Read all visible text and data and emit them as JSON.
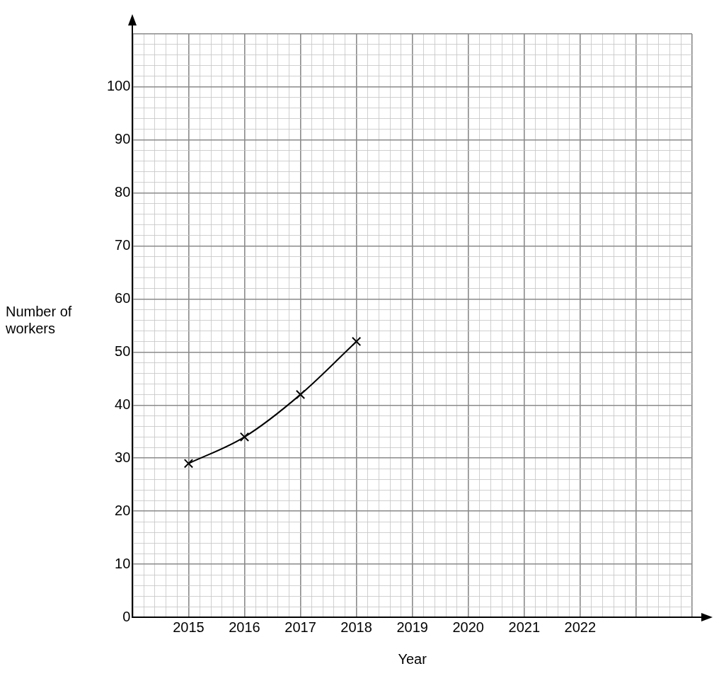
{
  "chart_data": {
    "type": "line",
    "xlabel": "Year",
    "ylabel": "Number of workers",
    "x": [
      2015,
      2016,
      2017,
      2018
    ],
    "series": [
      {
        "color": "#000000",
        "values": [
          29,
          34,
          42,
          52
        ]
      }
    ],
    "marker": "cross",
    "line_style": "solid",
    "grid": true,
    "legend": false,
    "xlim": [
      2014,
      2024
    ],
    "ylim": [
      0,
      110
    ],
    "xticks": [
      {
        "value": 2014,
        "label": null
      },
      {
        "value": 2014.2,
        "label": null
      },
      {
        "value": 2014.4,
        "label": null
      },
      {
        "value": 2014.6,
        "label": null
      },
      {
        "value": 2014.8,
        "label": null
      },
      2015,
      {
        "value": 2015.2,
        "label": null
      },
      {
        "value": 2015.4,
        "label": null
      },
      {
        "value": 2015.6,
        "label": null
      },
      {
        "value": 2015.8,
        "label": null
      },
      2016,
      {
        "value": 2016.2,
        "label": null
      },
      {
        "value": 2016.4,
        "label": null
      },
      {
        "value": 2016.6,
        "label": null
      },
      {
        "value": 2016.8,
        "label": null
      },
      2017,
      {
        "value": 2017.2,
        "label": null
      },
      {
        "value": 2017.4,
        "label": null
      },
      {
        "value": 2017.6,
        "label": null
      },
      {
        "value": 2017.8,
        "label": null
      },
      2018,
      {
        "value": 2018.2,
        "label": null
      },
      {
        "value": 2018.4,
        "label": null
      },
      {
        "value": 2018.6,
        "label": null
      },
      {
        "value": 2018.8,
        "label": null
      },
      2019,
      {
        "value": 2019.2,
        "label": null
      },
      {
        "value": 2019.4,
        "label": null
      },
      {
        "value": 2019.6,
        "label": null
      },
      {
        "value": 2019.8,
        "label": null
      },
      2020,
      {
        "value": 2020.2,
        "label": null
      },
      {
        "value": 2020.4,
        "label": null
      },
      {
        "value": 2020.6,
        "label": null
      },
      {
        "value": 2020.8,
        "label": null
      },
      2021,
      {
        "value": 2021.2,
        "label": null
      },
      {
        "value": 2021.4,
        "label": null
      },
      {
        "value": 2021.6,
        "label": null
      },
      {
        "value": 2021.8,
        "label": null
      },
      2022,
      {
        "value": 2022.2,
        "label": null
      },
      {
        "value": 2022.4,
        "label": null
      },
      {
        "value": 2022.6,
        "label": null
      },
      {
        "value": 2022.8,
        "label": null
      },
      {
        "value": 2023,
        "label": null
      },
      {
        "value": 2023.2,
        "label": null
      },
      {
        "value": 2023.4,
        "label": null
      },
      {
        "value": 2023.6,
        "label": null
      },
      {
        "value": 2023.8,
        "label": null
      },
      {
        "value": 2024,
        "label": null
      }
    ],
    "yticks": [
      0,
      {
        "value": 2,
        "label": null
      },
      {
        "value": 4,
        "label": null
      },
      {
        "value": 6,
        "label": null
      },
      {
        "value": 8,
        "label": null
      },
      10,
      {
        "value": 12,
        "label": null
      },
      {
        "value": 14,
        "label": null
      },
      {
        "value": 16,
        "label": null
      },
      {
        "value": 18,
        "label": null
      },
      20,
      {
        "value": 22,
        "label": null
      },
      {
        "value": 24,
        "label": null
      },
      {
        "value": 26,
        "label": null
      },
      {
        "value": 28,
        "label": null
      },
      30,
      {
        "value": 32,
        "label": null
      },
      {
        "value": 34,
        "label": null
      },
      {
        "value": 36,
        "label": null
      },
      {
        "value": 38,
        "label": null
      },
      40,
      {
        "value": 42,
        "label": null
      },
      {
        "value": 44,
        "label": null
      },
      {
        "value": 46,
        "label": null
      },
      {
        "value": 48,
        "label": null
      },
      50,
      {
        "value": 52,
        "label": null
      },
      {
        "value": 54,
        "label": null
      },
      {
        "value": 56,
        "label": null
      },
      {
        "value": 58,
        "label": null
      },
      60,
      {
        "value": 62,
        "label": null
      },
      {
        "value": 64,
        "label": null
      },
      {
        "value": 66,
        "label": null
      },
      {
        "value": 68,
        "label": null
      },
      70,
      {
        "value": 72,
        "label": null
      },
      {
        "value": 74,
        "label": null
      },
      {
        "value": 76,
        "label": null
      },
      {
        "value": 78,
        "label": null
      },
      80,
      {
        "value": 82,
        "label": null
      },
      {
        "value": 84,
        "label": null
      },
      {
        "value": 86,
        "label": null
      },
      {
        "value": 88,
        "label": null
      },
      90,
      {
        "value": 92,
        "label": null
      },
      {
        "value": 94,
        "label": null
      },
      {
        "value": 96,
        "label": null
      },
      {
        "value": 98,
        "label": null
      },
      100,
      {
        "value": 102,
        "label": null
      },
      {
        "value": 104,
        "label": null
      },
      {
        "value": 106,
        "label": null
      },
      {
        "value": 108,
        "label": null
      },
      {
        "value": 110,
        "label": null
      }
    ]
  }
}
